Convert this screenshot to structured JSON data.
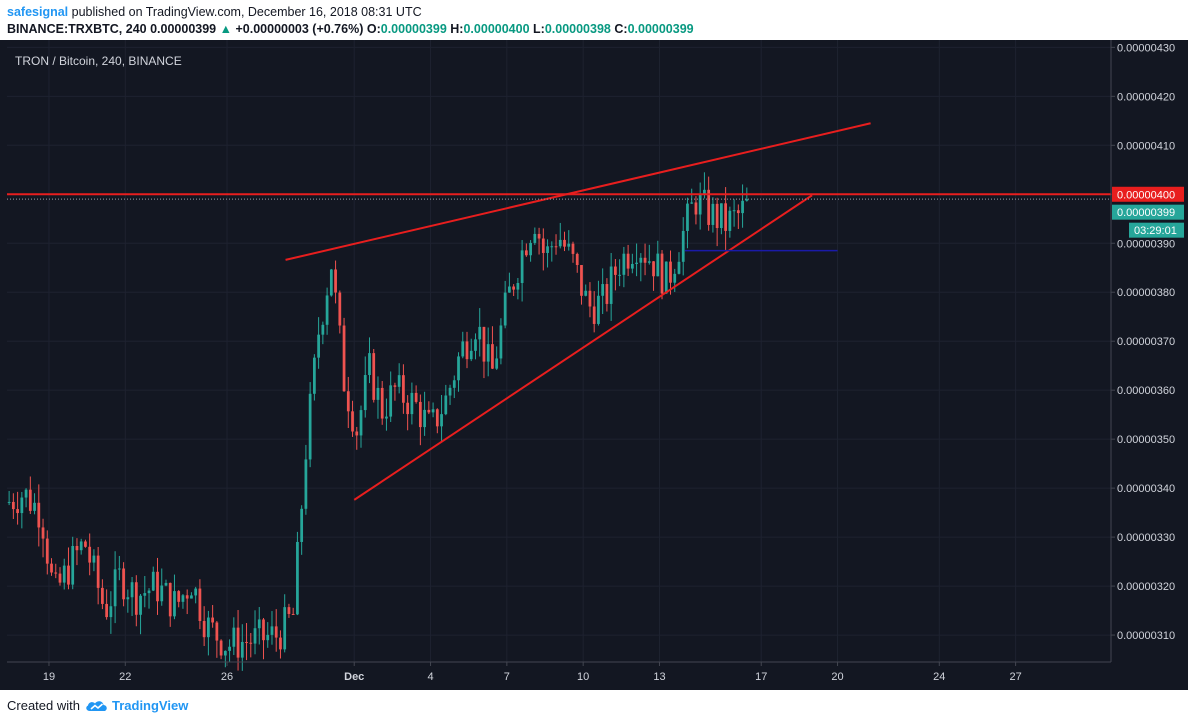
{
  "header": {
    "username": "safesignal",
    "published_text": "published on TradingView.com, December 16, 2018 08:31 UTC",
    "symbol": "BINANCE:TRXBTC, 240",
    "last": "0.00000399",
    "change": "+0.00000003 (+0.76%)",
    "o_label": "O:",
    "o_value": "0.00000399",
    "h_label": "H:",
    "h_value": "0.00000400",
    "l_label": "L:",
    "l_value": "0.00000398",
    "c_label": "C:",
    "c_value": "0.00000399"
  },
  "footer": {
    "created_with": "Created with",
    "brand": "TradingView"
  },
  "colors": {
    "background": "#131722",
    "up": "#26a69a",
    "down": "#ef5350",
    "trendline": "#e81e1e",
    "support": "#1a1aa8",
    "axis_text": "#d1d4dc"
  },
  "chart_data": {
    "type": "candlestick",
    "title": "TRON / Bitcoin, 240, BINANCE",
    "timeframe": "240",
    "ylim": [
      3.045e-06,
      4.315e-06
    ],
    "y_ticks": [
      "0.00000430",
      "0.00000420",
      "0.00000410",
      "0.00000400",
      "0.00000390",
      "0.00000380",
      "0.00000370",
      "0.00000360",
      "0.00000350",
      "0.00000340",
      "0.00000330",
      "0.00000320",
      "0.00000310"
    ],
    "x_ticks": [
      {
        "label": "19",
        "day": 19
      },
      {
        "label": "22",
        "day": 22
      },
      {
        "label": "26",
        "day": 26
      },
      {
        "label": "Dec",
        "day": 31
      },
      {
        "label": "4",
        "day": 34
      },
      {
        "label": "7",
        "day": 37
      },
      {
        "label": "10",
        "day": 40
      },
      {
        "label": "13",
        "day": 43
      },
      {
        "label": "17",
        "day": 47
      },
      {
        "label": "20",
        "day": 50
      },
      {
        "label": "24",
        "day": 54
      },
      {
        "label": "27",
        "day": 57
      }
    ],
    "x_domain_days": [
      17.35,
      60.75
    ],
    "price_path": [
      [
        17.35,
        3.37
      ],
      [
        18.0,
        3.39
      ],
      [
        18.7,
        3.35
      ],
      [
        19.2,
        3.18
      ],
      [
        19.8,
        3.24
      ],
      [
        20.4,
        3.29
      ],
      [
        21.2,
        3.15
      ],
      [
        21.8,
        3.22
      ],
      [
        22.4,
        3.18
      ],
      [
        23.2,
        3.2
      ],
      [
        24.0,
        3.16
      ],
      [
        24.6,
        3.21
      ],
      [
        25.2,
        3.12
      ],
      [
        26.0,
        3.08
      ],
      [
        27.0,
        3.09
      ],
      [
        28.0,
        3.1
      ],
      [
        28.6,
        3.14
      ],
      [
        29.1,
        3.48
      ],
      [
        29.6,
        3.72
      ],
      [
        30.1,
        3.86
      ],
      [
        30.6,
        3.62
      ],
      [
        31.1,
        3.52
      ],
      [
        31.6,
        3.64
      ],
      [
        32.1,
        3.56
      ],
      [
        32.6,
        3.6
      ],
      [
        33.4,
        3.57
      ],
      [
        34.0,
        3.52
      ],
      [
        34.6,
        3.58
      ],
      [
        35.2,
        3.68
      ],
      [
        35.8,
        3.74
      ],
      [
        36.4,
        3.63
      ],
      [
        37.0,
        3.78
      ],
      [
        37.7,
        3.9
      ],
      [
        38.1,
        3.95
      ],
      [
        38.5,
        3.87
      ],
      [
        39.0,
        3.92
      ],
      [
        39.6,
        3.86
      ],
      [
        40.2,
        3.77
      ],
      [
        40.8,
        3.78
      ],
      [
        41.4,
        3.86
      ],
      [
        42.1,
        3.9
      ],
      [
        42.8,
        3.86
      ],
      [
        43.3,
        3.82
      ],
      [
        43.8,
        3.9
      ],
      [
        44.4,
        3.99
      ],
      [
        45.0,
        3.96
      ],
      [
        45.6,
        3.94
      ],
      [
        46.2,
        3.96
      ],
      [
        46.5,
        3.99
      ]
    ],
    "annotations": {
      "last_price": "0.00000399",
      "last_price_value": 3.99e-06,
      "resistance_label": "0.00000400",
      "resistance_value": 4e-06,
      "countdown": "03:29:01",
      "trendlines": [
        {
          "name": "upper-wedge-line",
          "from": [
            28.3,
            3.866e-06
          ],
          "to": [
            51.3,
            4.145e-06
          ]
        },
        {
          "name": "lower-wedge-line",
          "from": [
            31.0,
            3.376e-06
          ],
          "to": [
            49.0,
            3.998e-06
          ]
        },
        {
          "name": "resistance-line",
          "from": [
            17.35,
            4e-06
          ],
          "to": [
            60.75,
            4e-06
          ]
        },
        {
          "name": "support-line",
          "from": [
            44.0,
            3.885e-06
          ],
          "to": [
            50.0,
            3.885e-06
          ]
        }
      ]
    }
  }
}
